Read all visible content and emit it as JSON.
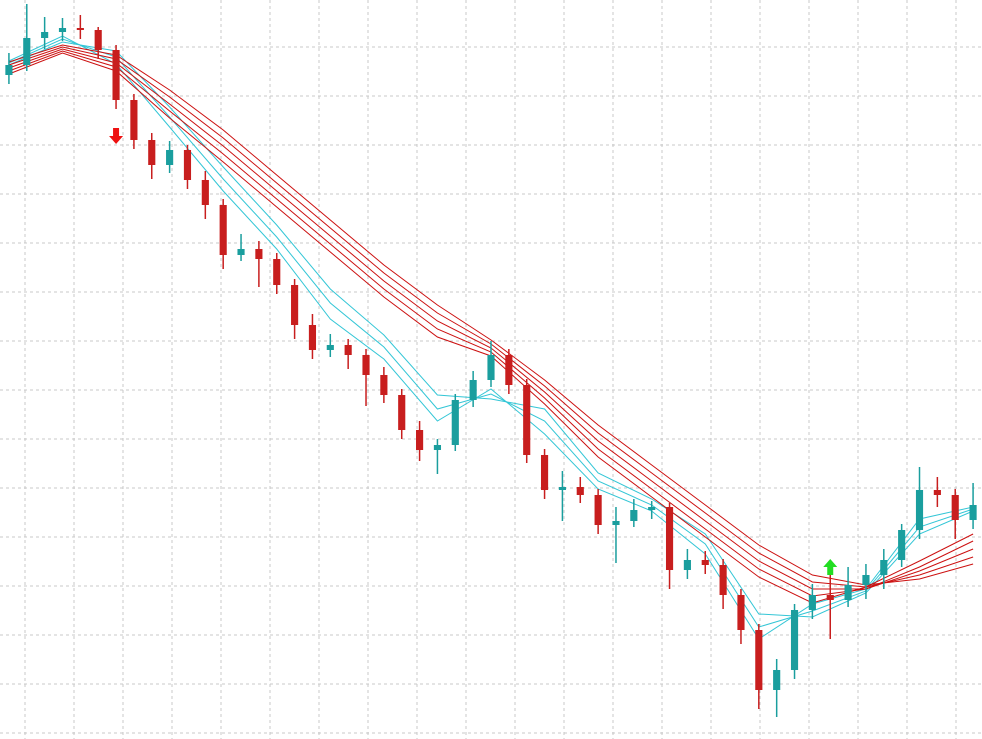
{
  "chart_data": {
    "type": "candlestick",
    "xlim": [
      -0.5,
      54.5
    ],
    "ylim": [
      0,
      739
    ],
    "grid": true,
    "up_color": "#1a9e9e",
    "down_color": "#c81e1e",
    "open": [
      664,
      674,
      701,
      707,
      711,
      709,
      689,
      639,
      599,
      574,
      589,
      559,
      534,
      484,
      490,
      480,
      454,
      414,
      389,
      394,
      384,
      364,
      344,
      309,
      289,
      294,
      339,
      359,
      384,
      354,
      284,
      249,
      252,
      244,
      214,
      218,
      229,
      232,
      169,
      179,
      174,
      144,
      109,
      49,
      69,
      129,
      144,
      139,
      154,
      164,
      179,
      209,
      249,
      244,
      219
    ],
    "high": [
      686,
      735,
      722,
      721,
      724,
      712,
      694,
      645,
      606,
      598,
      594,
      568,
      540,
      505,
      498,
      486,
      460,
      425,
      405,
      400,
      390,
      372,
      350,
      318,
      300,
      345,
      368,
      398,
      390,
      360,
      290,
      268,
      262,
      250,
      232,
      240,
      238,
      236,
      190,
      188,
      180,
      150,
      115,
      80,
      135,
      155,
      168,
      172,
      175,
      190,
      215,
      272,
      262,
      250,
      256
    ],
    "low": [
      655,
      668,
      690,
      698,
      700,
      680,
      630,
      590,
      560,
      566,
      550,
      520,
      470,
      478,
      452,
      445,
      400,
      380,
      382,
      370,
      333,
      336,
      300,
      278,
      265,
      288,
      332,
      352,
      345,
      276,
      240,
      218,
      236,
      205,
      176,
      212,
      220,
      150,
      160,
      165,
      130,
      95,
      30,
      22,
      60,
      120,
      100,
      132,
      140,
      150,
      172,
      200,
      232,
      200,
      210
    ],
    "close": [
      674,
      701,
      707,
      711,
      709,
      689,
      639,
      599,
      574,
      589,
      559,
      534,
      484,
      490,
      480,
      454,
      414,
      389,
      394,
      384,
      364,
      344,
      309,
      289,
      294,
      339,
      359,
      384,
      354,
      284,
      249,
      252,
      244,
      214,
      218,
      229,
      232,
      169,
      179,
      174,
      144,
      109,
      49,
      69,
      129,
      144,
      139,
      154,
      164,
      179,
      209,
      249,
      244,
      219,
      234
    ],
    "ma_x": [
      0,
      3,
      6,
      9,
      12,
      15,
      18,
      21,
      24,
      27,
      30,
      33,
      36,
      39,
      42,
      45,
      48,
      51,
      54
    ],
    "series": [
      {
        "color": "#33c6d6",
        "values": [
          678,
          703,
          675,
          612,
          548,
          490,
          420,
          380,
          318,
          350,
          305,
          250,
          228,
          185,
          100,
          135,
          150,
          220,
          232
        ]
      },
      {
        "color": "#33c6d6",
        "values": [
          676,
          700,
          682,
          622,
          560,
          502,
          436,
          392,
          330,
          345,
          318,
          258,
          234,
          195,
          112,
          128,
          148,
          212,
          230
        ]
      },
      {
        "color": "#33c6d6",
        "values": [
          674,
          697,
          688,
          632,
          572,
          514,
          450,
          404,
          344,
          340,
          330,
          266,
          240,
          205,
          125,
          122,
          146,
          205,
          228
        ]
      },
      {
        "color": "#cc1010",
        "values": [
          665,
          686,
          668,
          621,
          577,
          532,
          487,
          442,
          402,
          383,
          335,
          282,
          242,
          202,
          162,
          136,
          152,
          178,
          205
        ]
      },
      {
        "color": "#cc1010",
        "values": [
          668,
          688,
          672,
          628,
          585,
          540,
          495,
          450,
          410,
          387,
          341,
          290,
          250,
          210,
          170,
          143,
          150,
          172,
          198
        ]
      },
      {
        "color": "#cc1010",
        "values": [
          671,
          690,
          676,
          635,
          593,
          548,
          503,
          458,
          418,
          391,
          347,
          298,
          258,
          218,
          178,
          150,
          150,
          168,
          190
        ]
      },
      {
        "color": "#cc1010",
        "values": [
          674,
          692,
          680,
          642,
          601,
          556,
          511,
          466,
          426,
          395,
          353,
          306,
          266,
          226,
          186,
          157,
          152,
          164,
          182
        ]
      },
      {
        "color": "#cc1010",
        "values": [
          677,
          694,
          684,
          649,
          609,
          564,
          519,
          474,
          434,
          399,
          359,
          314,
          274,
          234,
          194,
          164,
          154,
          160,
          175
        ]
      }
    ],
    "sell_signals": [
      {
        "x": 6,
        "y": 603,
        "color": "#ee1111"
      }
    ],
    "buy_signals": [
      {
        "x": 46,
        "y": 172,
        "color": "#22dd22"
      }
    ]
  }
}
